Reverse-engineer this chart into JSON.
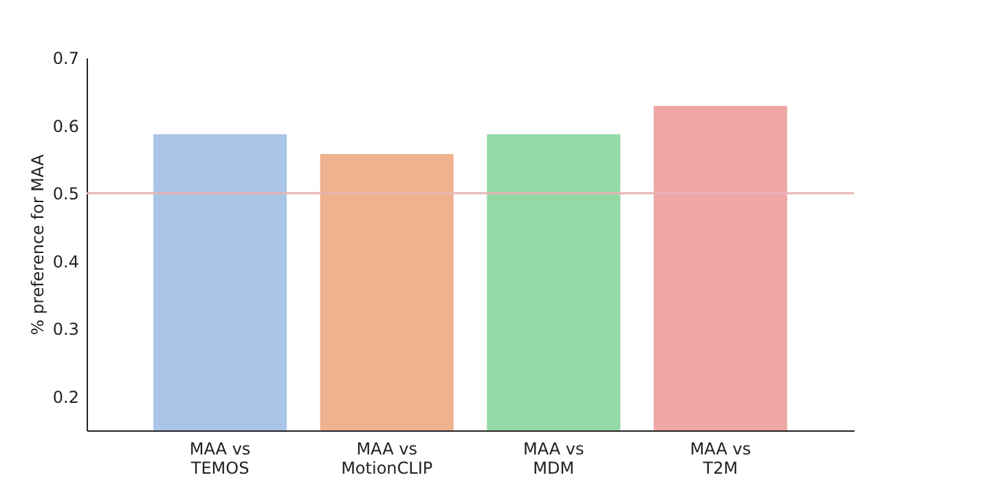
{
  "chart_data": {
    "type": "bar",
    "ylabel": "% preference for MAA",
    "categories": [
      "MAA vs\nTEMOS",
      "MAA vs\nMotionCLIP",
      "MAA vs\nMDM",
      "MAA vs\nT2M"
    ],
    "values": [
      0.587,
      0.558,
      0.587,
      0.629
    ],
    "colors": [
      "#a9c6e8",
      "#efb28f",
      "#93d9a6",
      "#efa7a6"
    ],
    "ylim": [
      0.15,
      0.7
    ],
    "yticks": [
      0.2,
      0.3,
      0.4,
      0.5,
      0.6,
      0.7
    ],
    "ref_lines": [
      {
        "axis": "y",
        "value": 0.5,
        "color": "#e8b4b4"
      }
    ],
    "grid": false
  }
}
